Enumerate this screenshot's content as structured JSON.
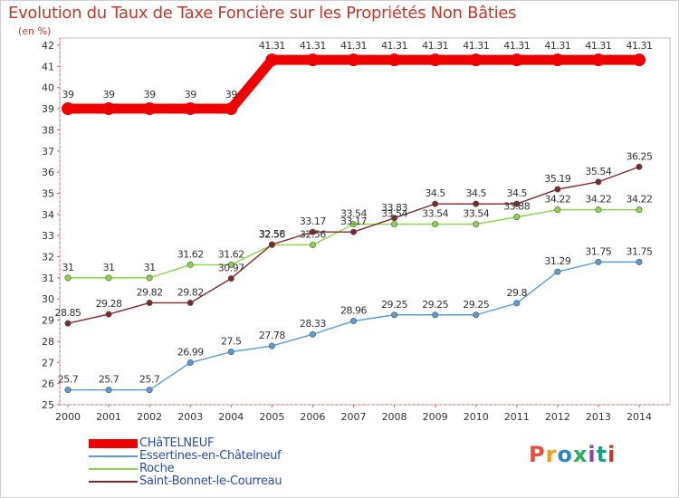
{
  "chart_data": {
    "type": "line",
    "title": "Evolution du Taux de Taxe Foncière sur les Propriétés Non Bâties",
    "ylabel": "(en %)",
    "xlabel": "",
    "ylim": [
      25,
      42
    ],
    "yticks": [
      "25",
      "26",
      "27",
      "28",
      "29",
      "30",
      "31",
      "32",
      "33",
      "34",
      "35",
      "36",
      "37",
      "38",
      "39",
      "40",
      "41",
      "42"
    ],
    "categories": [
      "2000",
      "2001",
      "2002",
      "2003",
      "2004",
      "2005",
      "2006",
      "2007",
      "2008",
      "2009",
      "2010",
      "2011",
      "2012",
      "2013",
      "2014"
    ],
    "series": [
      {
        "name": "CHâTELNEUF",
        "color": "#ee0000",
        "values": [
          39,
          39,
          39,
          39,
          39,
          41.31,
          41.31,
          41.31,
          41.31,
          41.31,
          41.31,
          41.31,
          41.31,
          41.31,
          41.31
        ],
        "labels": [
          "39",
          "39",
          "39",
          "39",
          "39",
          "41.31",
          "41.31",
          "41.31",
          "41.31",
          "41.31",
          "41.31",
          "41.31",
          "41.31",
          "41.31",
          "41.31"
        ]
      },
      {
        "name": "Essertines-en-Châtelneuf",
        "color": "#5b9bd5",
        "values": [
          25.7,
          25.7,
          25.7,
          26.99,
          27.5,
          27.78,
          28.33,
          28.96,
          29.25,
          29.25,
          29.25,
          29.8,
          31.29,
          31.75,
          31.75
        ],
        "labels": [
          "25.7",
          "25.7",
          "25.7",
          "26.99",
          "27.5",
          "27.78",
          "28.33",
          "28.96",
          "29.25",
          "29.25",
          "29.25",
          "29.8",
          "31.29",
          "31.75",
          "31.75"
        ]
      },
      {
        "name": "Roche",
        "color": "#8cd44a",
        "values": [
          31,
          31,
          31,
          31.62,
          31.62,
          32.56,
          32.56,
          33.54,
          33.54,
          33.54,
          33.54,
          33.88,
          34.22,
          34.22,
          34.22
        ],
        "labels": [
          "31",
          "31",
          "31",
          "31.62",
          "31.62",
          "32.56",
          "32.56",
          "33.54",
          "33.54",
          "33.54",
          "33.54",
          "33.88",
          "34.22",
          "34.22",
          "34.22"
        ]
      },
      {
        "name": "Saint-Bonnet-le-Courreau",
        "color": "#7b2a2a",
        "values": [
          28.85,
          29.28,
          29.82,
          29.82,
          30.97,
          32.58,
          33.17,
          33.17,
          33.83,
          34.5,
          34.5,
          34.5,
          35.19,
          35.54,
          36.25
        ],
        "labels": [
          "28.85",
          "29.28",
          "29.82",
          "29.82",
          "30.97",
          "32.58",
          "33.17",
          "33.17",
          "33.83",
          "34.5",
          "34.5",
          "34.5",
          "35.19",
          "35.54",
          "36.25"
        ]
      }
    ],
    "legend_position": "bottom-left",
    "grid": false
  },
  "branding": {
    "logo_text": "Proxiti",
    "logo_colors": [
      "#e84c3d",
      "#f39c12",
      "#2e86c1",
      "#27ae60",
      "#8e44ad",
      "#16a085",
      "#c0392b"
    ]
  }
}
